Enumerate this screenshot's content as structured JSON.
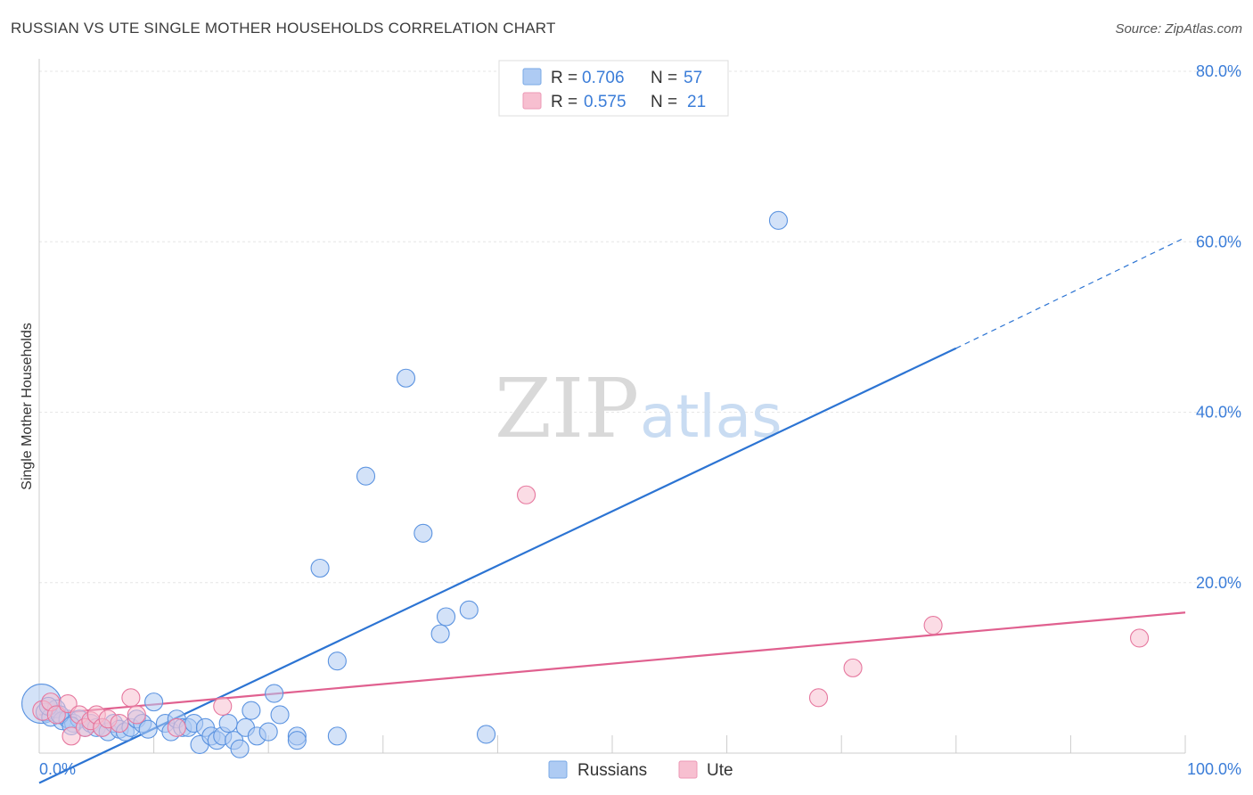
{
  "title": "RUSSIAN VS UTE SINGLE MOTHER HOUSEHOLDS CORRELATION CHART",
  "source": "Source: ZipAtlas.com",
  "watermark": {
    "zip": "ZIP",
    "atlas": "atlas"
  },
  "legend": {
    "rows": [
      {
        "r_label": "R =",
        "r_value": "0.706",
        "n_label": "N =",
        "n_value": "57",
        "color": "#aecbf3"
      },
      {
        "r_label": "R =",
        "r_value": "0.575",
        "n_label": "N =",
        "n_value": "21",
        "color": "#f7bfd0"
      }
    ]
  },
  "bottom_legend": [
    {
      "label": "Russians",
      "color": "#aecbf3"
    },
    {
      "label": "Ute",
      "color": "#f7bfd0"
    }
  ],
  "chart_data": {
    "type": "scatter",
    "title": "RUSSIAN VS UTE SINGLE MOTHER HOUSEHOLDS CORRELATION CHART",
    "xlabel": "",
    "ylabel": "Single Mother Households",
    "xlim": [
      0,
      100
    ],
    "ylim": [
      0,
      80
    ],
    "x_tick_labels": [
      "0.0%",
      "100.0%"
    ],
    "y_ticks": [
      20,
      40,
      60,
      80
    ],
    "y_tick_labels": [
      "20.0%",
      "40.0%",
      "60.0%",
      "80.0%"
    ],
    "grid": true,
    "series": [
      {
        "name": "Russians",
        "color": "#5b93e0",
        "fill": "#aecbf3",
        "r": 0.706,
        "n": 57,
        "trend": {
          "x0": 0,
          "y0": -3.5,
          "x1": 80,
          "y1": 47.5,
          "dash_to_x": 100,
          "dash_to_y": 60.5,
          "color": "#2c74d3"
        },
        "points": [
          [
            0.2,
            5.8,
            22
          ],
          [
            0.5,
            4.8,
            10
          ],
          [
            1.0,
            4.2,
            10
          ],
          [
            1.5,
            5.2,
            10
          ],
          [
            2.0,
            3.8,
            10
          ],
          [
            2.5,
            4.0,
            10
          ],
          [
            3.0,
            3.5,
            10
          ],
          [
            3.5,
            4.0,
            10
          ],
          [
            4.0,
            3.0,
            10
          ],
          [
            4.5,
            3.5,
            10
          ],
          [
            5.0,
            3.0,
            10
          ],
          [
            5.5,
            3.0,
            10
          ],
          [
            6.0,
            2.5,
            10
          ],
          [
            6.5,
            3.5,
            10
          ],
          [
            7.0,
            2.8,
            10
          ],
          [
            7.5,
            2.5,
            10
          ],
          [
            8.0,
            3.0,
            10
          ],
          [
            8.5,
            4.0,
            10
          ],
          [
            9.0,
            3.5,
            10
          ],
          [
            9.5,
            2.8,
            10
          ],
          [
            10.0,
            6.0,
            10
          ],
          [
            11.0,
            3.5,
            10
          ],
          [
            11.5,
            2.5,
            10
          ],
          [
            12.0,
            4.0,
            10
          ],
          [
            12.5,
            3.0,
            10
          ],
          [
            13.0,
            3.0,
            10
          ],
          [
            13.5,
            3.5,
            10
          ],
          [
            14.0,
            1.0,
            10
          ],
          [
            14.5,
            3.0,
            10
          ],
          [
            15.0,
            2.0,
            10
          ],
          [
            15.5,
            1.5,
            10
          ],
          [
            16.0,
            2.0,
            10
          ],
          [
            16.5,
            3.5,
            10
          ],
          [
            17.0,
            1.5,
            10
          ],
          [
            17.5,
            0.5,
            10
          ],
          [
            18.0,
            3.0,
            10
          ],
          [
            18.5,
            5.0,
            10
          ],
          [
            19.0,
            2.0,
            10
          ],
          [
            20.0,
            2.5,
            10
          ],
          [
            20.5,
            7.0,
            10
          ],
          [
            21.0,
            4.5,
            10
          ],
          [
            22.5,
            2.0,
            10
          ],
          [
            22.5,
            1.5,
            10
          ],
          [
            24.5,
            21.7,
            10
          ],
          [
            26.0,
            10.8,
            10
          ],
          [
            26.0,
            2.0,
            10
          ],
          [
            28.5,
            32.5,
            10
          ],
          [
            32.0,
            44.0,
            10
          ],
          [
            33.5,
            25.8,
            10
          ],
          [
            35.0,
            14.0,
            10
          ],
          [
            35.5,
            16.0,
            10
          ],
          [
            37.5,
            16.8,
            10
          ],
          [
            39.0,
            2.2,
            10
          ],
          [
            64.5,
            62.5,
            10
          ],
          [
            0.8,
            5.5,
            10
          ],
          [
            1.8,
            4.5,
            10
          ],
          [
            2.8,
            3.2,
            10
          ]
        ]
      },
      {
        "name": "Ute",
        "color": "#e6779e",
        "fill": "#f7bfd0",
        "r": 0.575,
        "n": 21,
        "trend": {
          "x0": 0,
          "y0": 4.5,
          "x1": 100,
          "y1": 16.5,
          "color": "#e0608f"
        },
        "points": [
          [
            0.3,
            5.0,
            11
          ],
          [
            1.0,
            6.0,
            10
          ],
          [
            1.5,
            4.5,
            10
          ],
          [
            2.5,
            5.8,
            10
          ],
          [
            2.8,
            2.0,
            10
          ],
          [
            3.5,
            4.5,
            10
          ],
          [
            4.0,
            3.0,
            10
          ],
          [
            4.5,
            3.8,
            10
          ],
          [
            5.0,
            4.5,
            10
          ],
          [
            5.5,
            3.0,
            10
          ],
          [
            6.0,
            4.0,
            10
          ],
          [
            7.0,
            3.5,
            10
          ],
          [
            8.0,
            6.5,
            10
          ],
          [
            8.5,
            4.5,
            10
          ],
          [
            12.0,
            3.0,
            10
          ],
          [
            16.0,
            5.5,
            10
          ],
          [
            42.5,
            30.3,
            10
          ],
          [
            68.0,
            6.5,
            10
          ],
          [
            71.0,
            10.0,
            10
          ],
          [
            78.0,
            15.0,
            10
          ],
          [
            96.0,
            13.5,
            10
          ]
        ]
      }
    ]
  }
}
